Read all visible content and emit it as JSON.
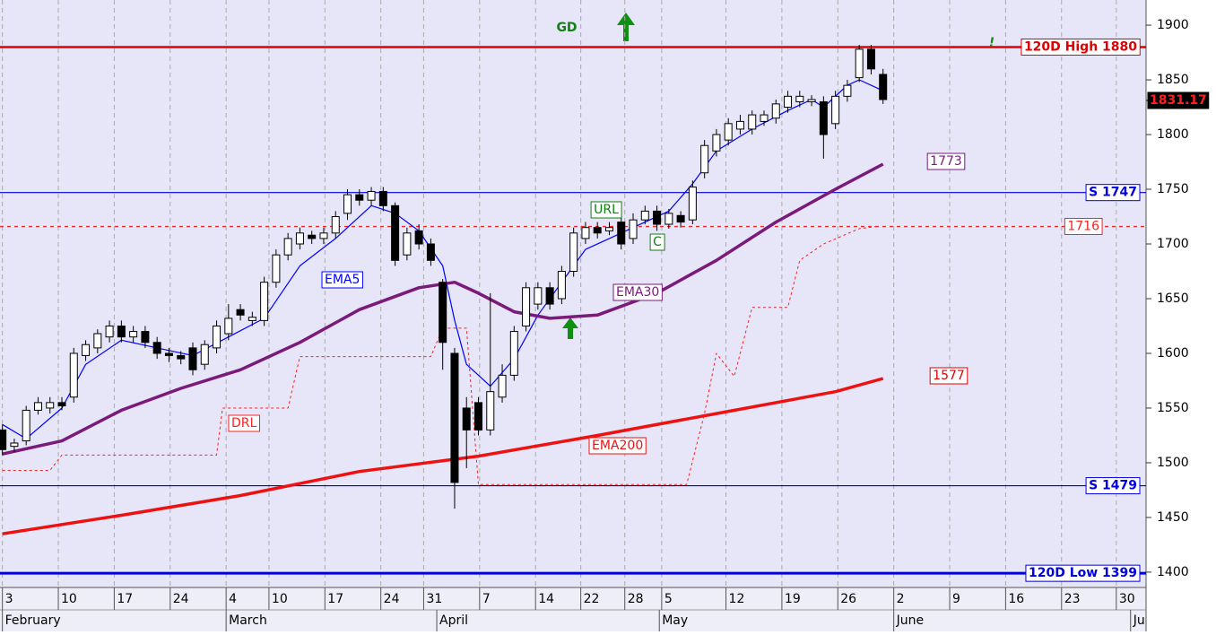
{
  "chart_data": {
    "type": "candlestick",
    "ylim": [
      1386,
      1923
    ],
    "yticks": [
      1400,
      1450,
      1500,
      1550,
      1600,
      1650,
      1700,
      1750,
      1800,
      1850,
      1900
    ],
    "xlim": [
      -0.2,
      96.1
    ],
    "xticks": [
      {
        "value": 0,
        "label": "3"
      },
      {
        "value": 4.7,
        "label": "10"
      },
      {
        "value": 9.4,
        "label": "17"
      },
      {
        "value": 14.1,
        "label": "24"
      },
      {
        "value": 18.8,
        "label": "4"
      },
      {
        "value": 22.4,
        "label": "10"
      },
      {
        "value": 27.1,
        "label": "17"
      },
      {
        "value": 31.8,
        "label": "24"
      },
      {
        "value": 35.4,
        "label": "31"
      },
      {
        "value": 40.1,
        "label": "7"
      },
      {
        "value": 44.8,
        "label": "14"
      },
      {
        "value": 48.6,
        "label": "22"
      },
      {
        "value": 52.3,
        "label": "28"
      },
      {
        "value": 55.4,
        "label": "5"
      },
      {
        "value": 60.8,
        "label": "12"
      },
      {
        "value": 65.5,
        "label": "19"
      },
      {
        "value": 70.2,
        "label": "26"
      },
      {
        "value": 74.9,
        "label": "2"
      },
      {
        "value": 79.6,
        "label": "9"
      },
      {
        "value": 84.3,
        "label": "16"
      },
      {
        "value": 89,
        "label": "23"
      },
      {
        "value": 93.6,
        "label": "30"
      }
    ],
    "months": [
      {
        "value": 0,
        "label": "February"
      },
      {
        "value": 18.8,
        "label": "March"
      },
      {
        "value": 36.5,
        "label": "April"
      },
      {
        "value": 55.2,
        "label": "May"
      },
      {
        "value": 74.9,
        "label": "June"
      },
      {
        "value": 94.8,
        "label": "Ju"
      }
    ],
    "grid": true,
    "candles": {
      "x": [
        0,
        1,
        2,
        3,
        4,
        5,
        6,
        7,
        8,
        9,
        10,
        11,
        12,
        13,
        14,
        15,
        16,
        17,
        18,
        19,
        20,
        21,
        22,
        23,
        24,
        25,
        26,
        27,
        28,
        29,
        30,
        31,
        32,
        33,
        34,
        35,
        36,
        37,
        38,
        39,
        40,
        41,
        42,
        43,
        44,
        45,
        46,
        47,
        48,
        49,
        50,
        51,
        52,
        53,
        54,
        55,
        56,
        57,
        58,
        59,
        60,
        61,
        62,
        63,
        64,
        65,
        66,
        67,
        68,
        69,
        70,
        71,
        72,
        73,
        74
      ],
      "open": [
        1530,
        1515,
        1520,
        1548,
        1550,
        1555,
        1560,
        1598,
        1605,
        1615,
        1625,
        1615,
        1620,
        1610,
        1600,
        1598,
        1605,
        1590,
        1605,
        1618,
        1640,
        1630,
        1630,
        1665,
        1690,
        1700,
        1708,
        1705,
        1710,
        1728,
        1745,
        1740,
        1748,
        1735,
        1690,
        1712,
        1700,
        1665,
        1600,
        1550,
        1555,
        1530,
        1560,
        1580,
        1625,
        1645,
        1660,
        1650,
        1675,
        1705,
        1715,
        1712,
        1720,
        1705,
        1722,
        1730,
        1718,
        1726,
        1722,
        1765,
        1785,
        1795,
        1805,
        1805,
        1812,
        1815,
        1825,
        1830,
        1830,
        1830,
        1810,
        1835,
        1852,
        1878,
        1855
      ],
      "high": [
        1535,
        1522,
        1552,
        1560,
        1560,
        1560,
        1605,
        1612,
        1622,
        1630,
        1630,
        1625,
        1625,
        1615,
        1605,
        1602,
        1610,
        1612,
        1630,
        1645,
        1645,
        1638,
        1670,
        1695,
        1710,
        1715,
        1712,
        1715,
        1730,
        1750,
        1750,
        1752,
        1752,
        1738,
        1715,
        1718,
        1705,
        1668,
        1605,
        1560,
        1560,
        1655,
        1590,
        1625,
        1665,
        1665,
        1665,
        1680,
        1715,
        1720,
        1720,
        1720,
        1725,
        1728,
        1735,
        1735,
        1732,
        1730,
        1758,
        1795,
        1805,
        1815,
        1818,
        1822,
        1822,
        1832,
        1840,
        1840,
        1836,
        1835,
        1840,
        1850,
        1882,
        1882,
        1860
      ],
      "low": [
        1507,
        1510,
        1516,
        1544,
        1545,
        1548,
        1555,
        1593,
        1600,
        1610,
        1610,
        1610,
        1605,
        1595,
        1592,
        1590,
        1580,
        1585,
        1600,
        1612,
        1630,
        1625,
        1625,
        1660,
        1685,
        1695,
        1700,
        1700,
        1705,
        1722,
        1735,
        1735,
        1730,
        1680,
        1685,
        1695,
        1680,
        1585,
        1458,
        1495,
        1525,
        1525,
        1555,
        1575,
        1620,
        1640,
        1640,
        1645,
        1670,
        1700,
        1705,
        1708,
        1695,
        1700,
        1718,
        1712,
        1714,
        1715,
        1718,
        1760,
        1780,
        1790,
        1800,
        1800,
        1808,
        1810,
        1820,
        1825,
        1826,
        1778,
        1805,
        1830,
        1848,
        1855,
        1828
      ],
      "close": [
        1512,
        1518,
        1548,
        1555,
        1555,
        1552,
        1600,
        1608,
        1618,
        1625,
        1615,
        1620,
        1610,
        1600,
        1598,
        1595,
        1585,
        1608,
        1625,
        1632,
        1635,
        1633,
        1665,
        1690,
        1705,
        1710,
        1705,
        1710,
        1725,
        1745,
        1740,
        1748,
        1735,
        1685,
        1710,
        1700,
        1685,
        1610,
        1482,
        1530,
        1530,
        1565,
        1580,
        1620,
        1660,
        1660,
        1645,
        1675,
        1710,
        1715,
        1710,
        1715,
        1700,
        1722,
        1730,
        1718,
        1728,
        1720,
        1752,
        1790,
        1800,
        1810,
        1812,
        1818,
        1818,
        1828,
        1835,
        1835,
        1832,
        1800,
        1835,
        1845,
        1878,
        1860,
        1832
      ]
    },
    "series": [
      {
        "name": "EMA5",
        "color": "#0000ff",
        "width": 1.2,
        "dashed": false,
        "x": [
          0,
          2,
          5,
          7,
          10,
          13,
          16,
          19,
          22,
          25,
          28,
          31,
          33,
          35,
          37,
          38,
          39,
          41,
          43,
          45,
          47,
          49,
          51,
          53,
          56,
          58,
          60,
          63,
          66,
          68,
          69,
          71,
          72,
          74
        ],
        "values": [
          1535,
          1522,
          1550,
          1590,
          1612,
          1605,
          1598,
          1615,
          1632,
          1680,
          1705,
          1735,
          1728,
          1712,
          1680,
          1630,
          1590,
          1570,
          1595,
          1635,
          1665,
          1695,
          1705,
          1715,
          1730,
          1755,
          1785,
          1805,
          1822,
          1832,
          1825,
          1845,
          1850,
          1840
        ]
      },
      {
        "name": "EMA30",
        "color": "#7a1a7a",
        "width": 3.5,
        "dashed": false,
        "x": [
          0,
          5,
          10,
          15,
          20,
          25,
          30,
          35,
          38,
          40,
          43,
          46,
          50,
          55,
          60,
          65,
          70,
          74
        ],
        "values": [
          1508,
          1520,
          1548,
          1568,
          1585,
          1610,
          1640,
          1660,
          1665,
          1655,
          1638,
          1632,
          1635,
          1655,
          1685,
          1720,
          1750,
          1773
        ]
      },
      {
        "name": "EMA200",
        "color": "#ee1111",
        "width": 3.5,
        "dashed": false,
        "x": [
          0,
          10,
          20,
          30,
          40,
          50,
          60,
          70,
          74
        ],
        "values": [
          1435,
          1452,
          1470,
          1492,
          1506,
          1525,
          1545,
          1565,
          1577
        ]
      },
      {
        "name": "DRL",
        "color": "#ff2020",
        "width": 1,
        "dashed": true,
        "x": [
          0,
          4,
          5,
          18,
          18.5,
          24,
          25,
          36,
          37,
          39,
          40,
          57.5,
          59,
          60,
          61.5,
          63,
          66,
          67,
          69,
          72,
          73.5
        ],
        "values": [
          1493,
          1493,
          1507,
          1507,
          1550,
          1550,
          1597,
          1597,
          1623,
          1623,
          1480,
          1480,
          1545,
          1600,
          1579,
          1642,
          1642,
          1685,
          1700,
          1714,
          1716
        ]
      }
    ],
    "levels": [
      {
        "label": "120D High 1880",
        "value": 1880,
        "color": "#e00000",
        "width": 2.5,
        "dashed": false
      },
      {
        "label": "S 1747",
        "value": 1747,
        "color": "#0000dd",
        "width": 1.2,
        "dashed": false
      },
      {
        "value": 1716,
        "color": "#ff2020",
        "width": 1.2,
        "dashed": true
      },
      {
        "label": "S 1479",
        "value": 1479,
        "color": "#0000dd",
        "width": 1.2,
        "dashed": false
      },
      {
        "label": "120D Low 1399",
        "value": 1399,
        "color": "#0000dd",
        "width": 3,
        "dashed": false
      }
    ],
    "last_price": 1831.17,
    "annotations": [
      {
        "text": "GD"
      },
      {
        "text": "!"
      },
      {
        "text": "URL"
      },
      {
        "text": "C"
      },
      {
        "value": 1773
      },
      {
        "value": 1577
      }
    ]
  }
}
